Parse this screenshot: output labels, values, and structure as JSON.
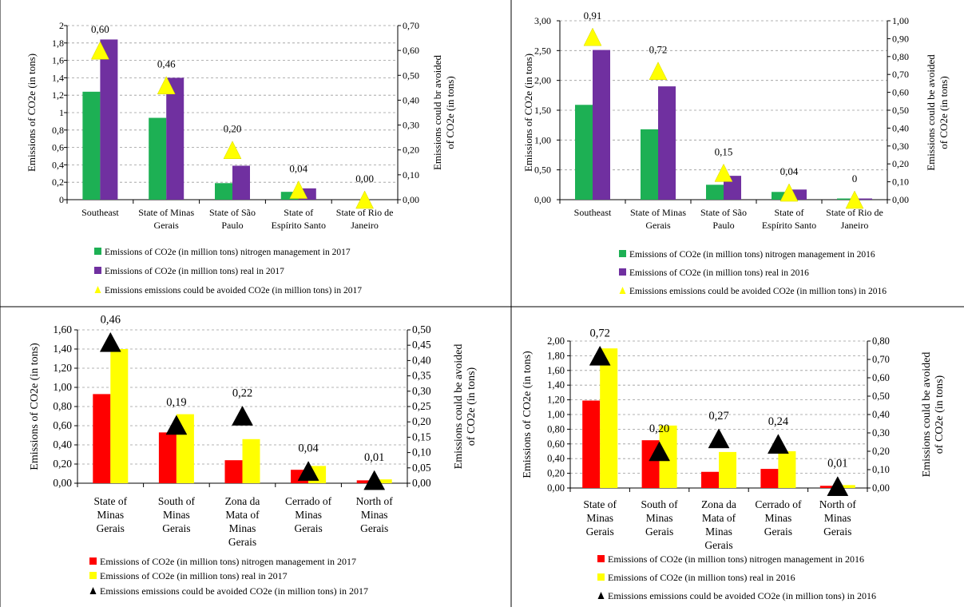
{
  "charts": [
    {
      "chart_data": {
        "type": "bar",
        "categories": [
          "Southeast",
          "State of Minas Gerais",
          "State of São Paulo",
          "State of Espírito Santo",
          "State of Rio de Janeiro"
        ],
        "series": [
          {
            "name": "Emissions of CO2e (in million tons) nitrogen management in 2017",
            "axis": "left",
            "kind": "bar",
            "color": "#1DB054",
            "values": [
              1.24,
              0.94,
              0.19,
              0.09,
              0.0
            ]
          },
          {
            "name": "Emissions of CO2e (in million tons) real in 2017",
            "axis": "left",
            "kind": "bar",
            "color": "#7030A0",
            "values": [
              1.84,
              1.4,
              0.39,
              0.13,
              0.0
            ]
          },
          {
            "name": "Emissions emissions could be avoided CO2e (in million tons) in 2017",
            "axis": "right",
            "kind": "marker",
            "color": "#FFFF00",
            "values": [
              0.6,
              0.46,
              0.2,
              0.04,
              0.0
            ],
            "labels": [
              "0,60",
              "0,46",
              "0,20",
              "0,04",
              "0,00"
            ]
          }
        ],
        "ylabel": "Emissions of CO2e (in tons)",
        "y2label_lines": [
          "Emissions could br avoided",
          "of CO2e (in tons)"
        ],
        "ylim": [
          0,
          2
        ],
        "y2lim": [
          0,
          0.7
        ],
        "yticks": [
          "0",
          "0,2",
          "0,4",
          "0,6",
          "0,8",
          "1",
          "1,2",
          "1,4",
          "1,6",
          "1,8",
          "2"
        ],
        "y2ticks": [
          "0,00",
          "0,10",
          "0,20",
          "0,30",
          "0,40",
          "0,50",
          "0,60",
          "0,70"
        ],
        "category_lines": [
          [
            "Southeast"
          ],
          [
            "State of Minas",
            "Gerais"
          ],
          [
            "State of São",
            "Paulo"
          ],
          [
            "State of",
            "Espírito Santo"
          ],
          [
            "State of Rio de",
            "Janeiro"
          ]
        ],
        "grid": true,
        "legend": "bottom"
      }
    },
    {
      "chart_data": {
        "type": "bar",
        "categories": [
          "Southeast",
          "State of Minas Gerais",
          "State of São Paulo",
          "State of Espírito Santo",
          "State of Rio de Janeiro"
        ],
        "series": [
          {
            "name": "Emissions of CO2e (in million tons) nitrogen management in 2016",
            "axis": "left",
            "kind": "bar",
            "color": "#1DB054",
            "values": [
              1.59,
              1.18,
              0.25,
              0.13,
              0.02
            ]
          },
          {
            "name": "Emissions of CO2e (in million tons) real in 2016",
            "axis": "left",
            "kind": "bar",
            "color": "#7030A0",
            "values": [
              2.51,
              1.9,
              0.4,
              0.17,
              0.02
            ]
          },
          {
            "name": "Emissions emissions could be avoided CO2e (in million tons) in 2016",
            "axis": "right",
            "kind": "marker",
            "color": "#FFFF00",
            "values": [
              0.91,
              0.72,
              0.15,
              0.04,
              0.0
            ],
            "labels": [
              "0,91",
              "0,72",
              "0,15",
              "0,04",
              "0"
            ]
          }
        ],
        "ylabel": "Emissions of CO2e (in tons)",
        "y2label_lines": [
          "Emissions could be avoided",
          "of CO2e (in tons)"
        ],
        "ylim": [
          0,
          3
        ],
        "y2lim": [
          0,
          1
        ],
        "yticks": [
          "0,00",
          "0,50",
          "1,00",
          "1,50",
          "2,00",
          "2,50",
          "3,00"
        ],
        "y2ticks": [
          "0,00",
          "0,10",
          "0,20",
          "0,30",
          "0,40",
          "0,50",
          "0,60",
          "0,70",
          "0,80",
          "0,90",
          "1,00"
        ],
        "category_lines": [
          [
            "Southeast"
          ],
          [
            "State of Minas",
            "Gerais"
          ],
          [
            "State of São",
            "Paulo"
          ],
          [
            "State of",
            "Espírito Santo"
          ],
          [
            "State of Rio de",
            "Janeiro"
          ]
        ],
        "grid": true,
        "legend": "bottom"
      }
    },
    {
      "chart_data": {
        "type": "bar",
        "categories": [
          "State of Minas Gerais",
          "South of Minas Gerais",
          "Zona da Mata of Minas Gerais",
          "Cerrado of Minas Gerais",
          "North of Minas Gerais"
        ],
        "series": [
          {
            "name": "Emissions of CO2e (in million tons) nitrogen management  in 2017",
            "axis": "left",
            "kind": "bar",
            "color": "#FF0000",
            "values": [
              0.93,
              0.53,
              0.24,
              0.14,
              0.03
            ]
          },
          {
            "name": "Emissions of CO2e (in million tons) real in 2017",
            "axis": "left",
            "kind": "bar",
            "color": "#FFFF00",
            "values": [
              1.4,
              0.72,
              0.46,
              0.18,
              0.04
            ]
          },
          {
            "name": "Emissions emissions could be avoided CO2e (in million tons) in 2017",
            "axis": "right",
            "kind": "marker",
            "color": "#000000",
            "values": [
              0.46,
              0.19,
              0.22,
              0.04,
              0.01
            ],
            "labels": [
              "0,46",
              "0,19",
              "0,22",
              "0,04",
              "0,01"
            ]
          }
        ],
        "ylabel": "Emissions of CO2e (in tons)",
        "y2label_lines": [
          "Emissions could be avoided",
          "of CO2e (in tons)"
        ],
        "ylim": [
          0,
          1.6
        ],
        "y2lim": [
          0,
          0.5
        ],
        "yticks": [
          "0,00",
          "0,20",
          "0,40",
          "0,60",
          "0,80",
          "1,00",
          "1,20",
          "1,40",
          "1,60"
        ],
        "y2ticks": [
          "0,00",
          "0,05",
          "0,10",
          "0,15",
          "0,20",
          "0,25",
          "0,30",
          "0,35",
          "0,40",
          "0,45",
          "0,50"
        ],
        "category_lines": [
          [
            "State of",
            "Minas",
            "Gerais"
          ],
          [
            "South of",
            "Minas",
            "Gerais"
          ],
          [
            "Zona da",
            "Mata of",
            "Minas",
            "Gerais"
          ],
          [
            "Cerrado of",
            "Minas",
            "Gerais"
          ],
          [
            "North of",
            "Minas",
            "Gerais"
          ]
        ],
        "grid": true,
        "legend": "bottom"
      }
    },
    {
      "chart_data": {
        "type": "bar",
        "categories": [
          "State of Minas Gerais",
          "South of Minas Gerais",
          "Zona da Mata of Minas Gerais",
          "Cerrado of Minas Gerais",
          "North of Minas Gerais"
        ],
        "series": [
          {
            "name": "Emissions of CO2e (in million tons) nitrogen management  in 2016",
            "axis": "left",
            "kind": "bar",
            "color": "#FF0000",
            "values": [
              1.19,
              0.65,
              0.22,
              0.26,
              0.03
            ]
          },
          {
            "name": "Emissions of CO2e (in million tons) real in 2016",
            "axis": "left",
            "kind": "bar",
            "color": "#FFFF00",
            "values": [
              1.9,
              0.85,
              0.49,
              0.5,
              0.04
            ]
          },
          {
            "name": "Emissions emissions could be avoided CO2e (in million tons) in 2016",
            "axis": "right",
            "kind": "marker",
            "color": "#000000",
            "values": [
              0.72,
              0.2,
              0.27,
              0.24,
              0.01
            ],
            "labels": [
              "0,72",
              "0,20",
              "0,27",
              "0,24",
              "0,01"
            ]
          }
        ],
        "ylabel": "Emissions of CO2e (in tons)",
        "y2label_lines": [
          "Emissions could be avoided",
          "of CO2e (in tons)"
        ],
        "ylim": [
          0,
          2
        ],
        "y2lim": [
          0,
          0.8
        ],
        "yticks": [
          "0,00",
          "0,20",
          "0,40",
          "0,60",
          "0,80",
          "1,00",
          "1,20",
          "1,40",
          "1,60",
          "1,80",
          "2,00"
        ],
        "y2ticks": [
          "0,00",
          "0,10",
          "0,20",
          "0,30",
          "0,40",
          "0,50",
          "0,60",
          "0,70",
          "0,80"
        ],
        "category_lines": [
          [
            "State of",
            "Minas",
            "Gerais"
          ],
          [
            "South of",
            "Minas",
            "Gerais"
          ],
          [
            "Zona da",
            "Mata of",
            "Minas",
            "Gerais"
          ],
          [
            "Cerrado of",
            "Minas",
            "Gerais"
          ],
          [
            "North of",
            "Minas",
            "Gerais"
          ]
        ],
        "grid": true,
        "legend": "bottom"
      }
    }
  ]
}
